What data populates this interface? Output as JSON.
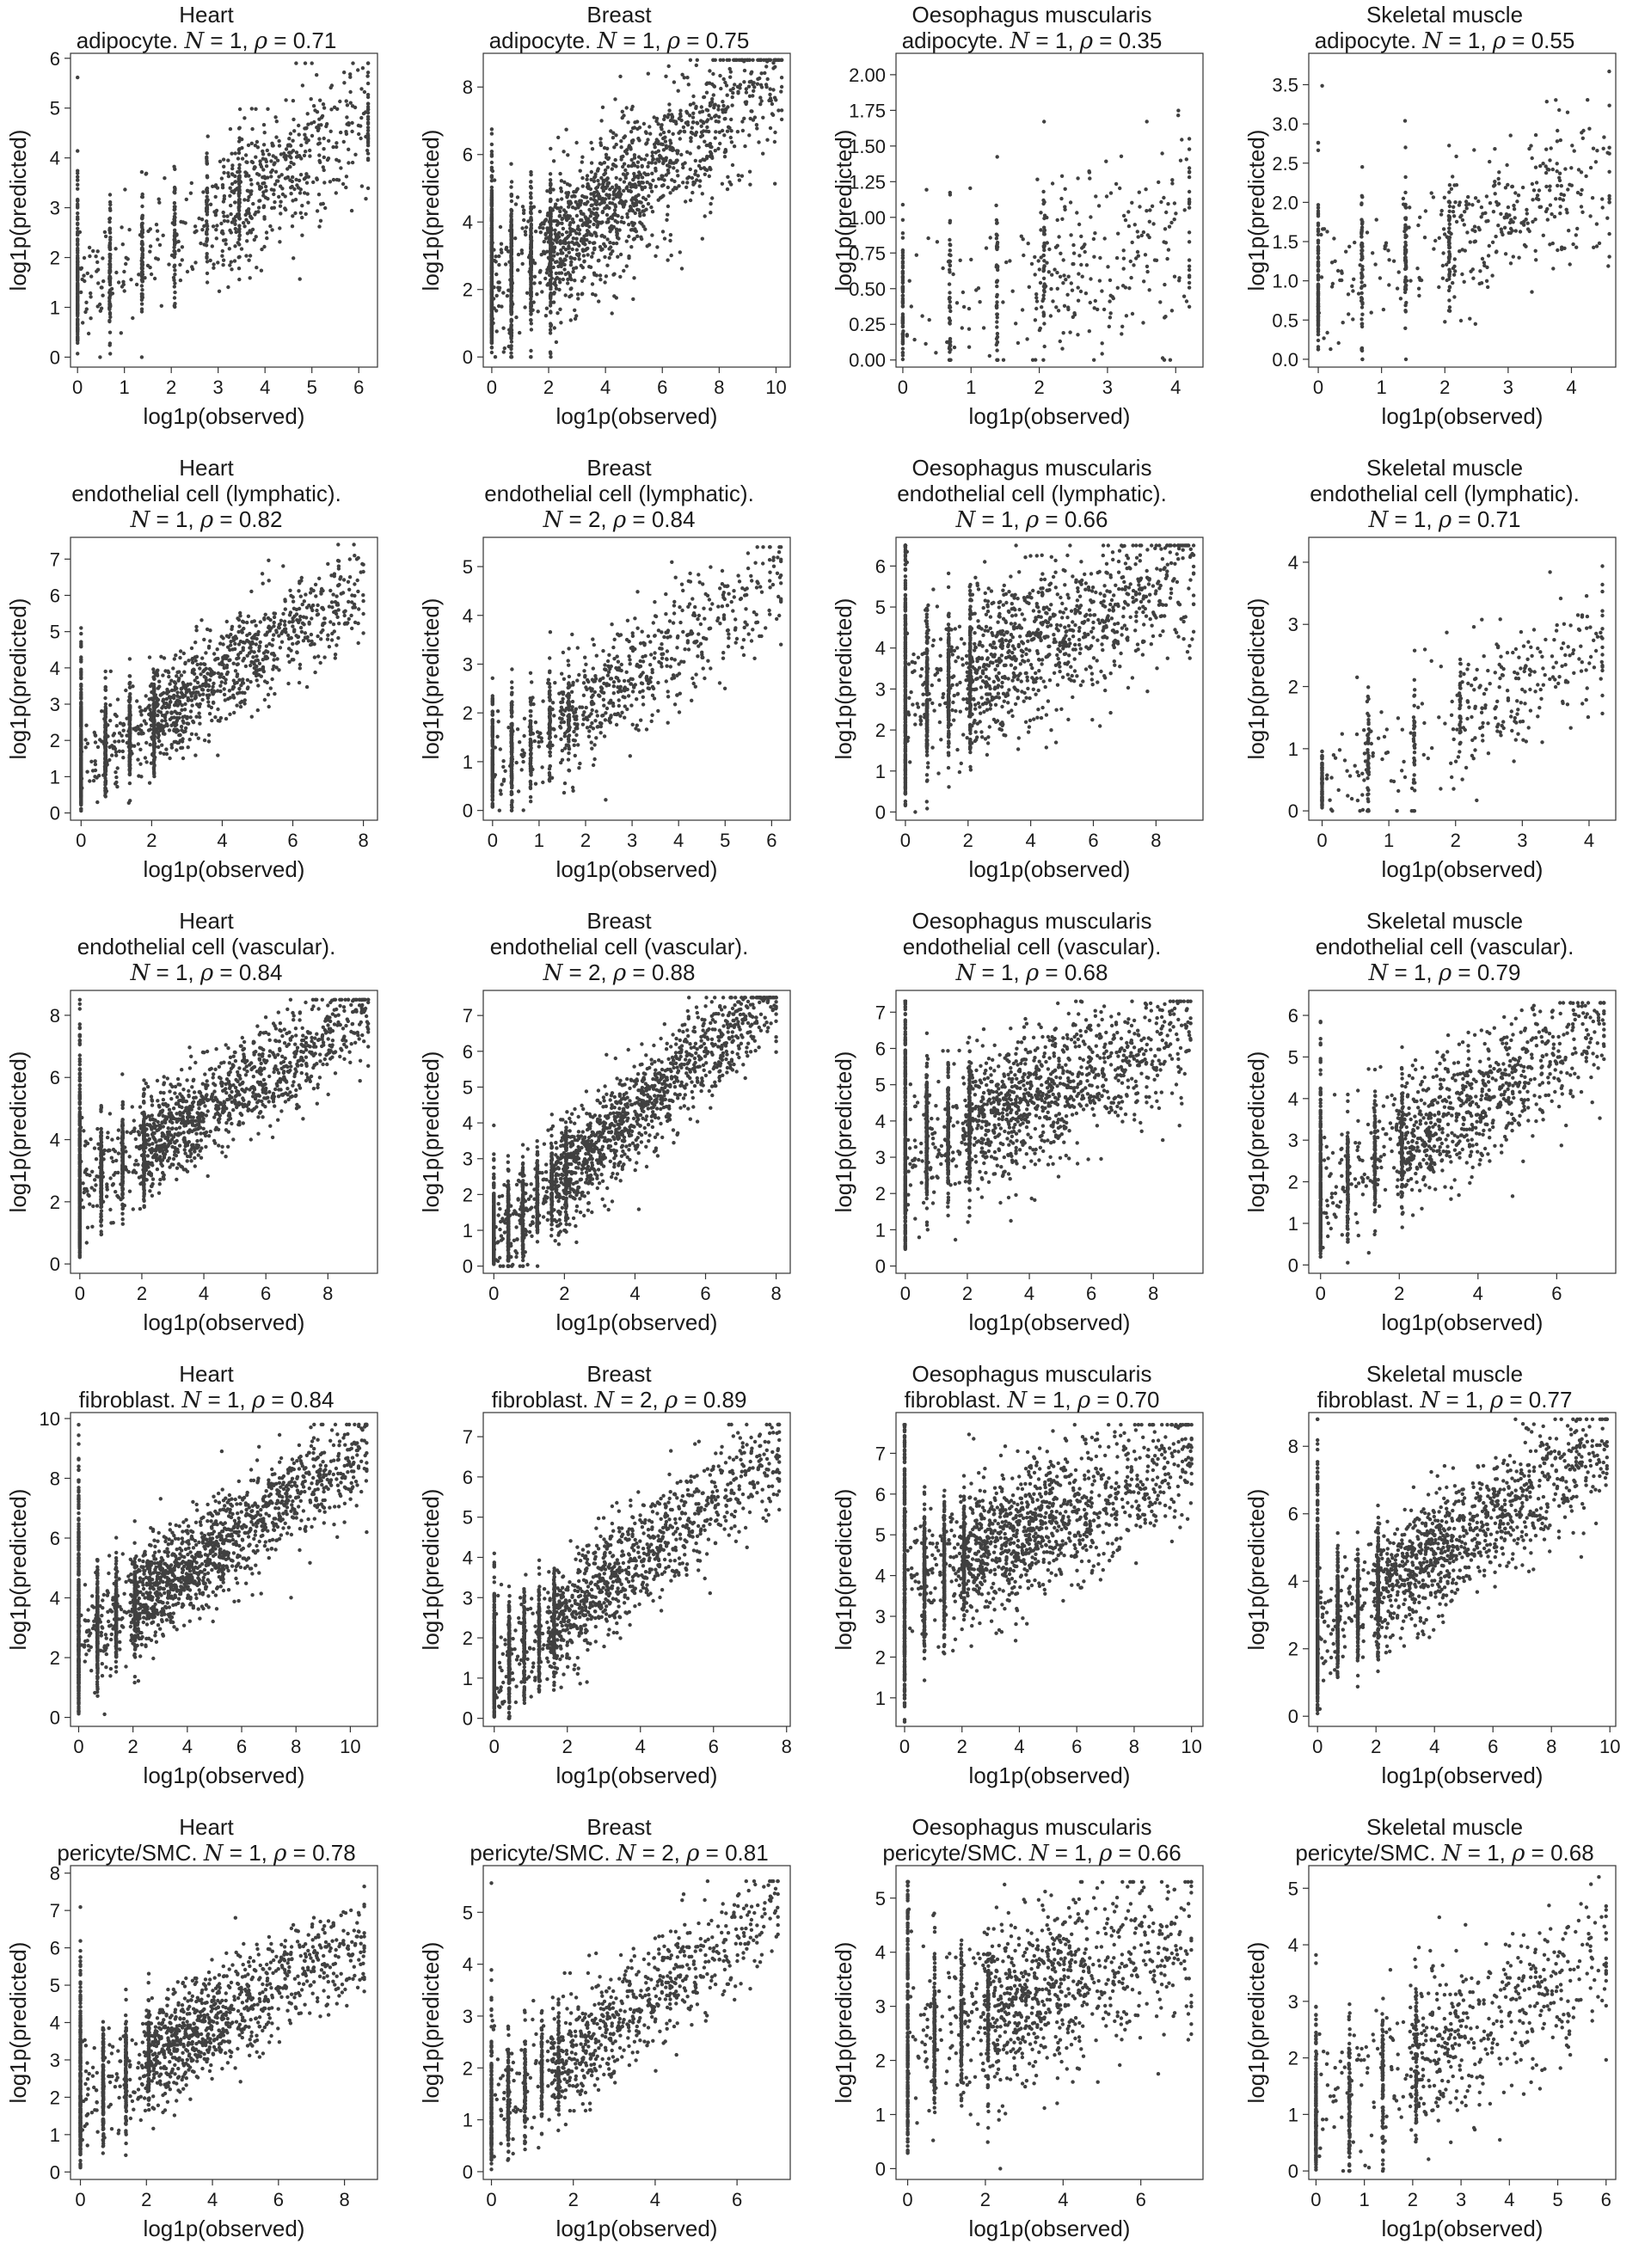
{
  "chart_data": [
    {
      "type": "scatter",
      "tissue": "Heart",
      "cell": "adipocyte.",
      "stat_n": "1",
      "stat_rho": "0.71",
      "xlabel": "log1p(observed)",
      "ylabel": "log1p(predicted)",
      "xticks": [
        0,
        1,
        2,
        3,
        4,
        5,
        6
      ],
      "yticks": [
        0,
        1,
        2,
        3,
        4,
        5,
        6
      ],
      "xlim": [
        -0.15,
        6.4
      ],
      "ylim": [
        -0.2,
        6.1
      ],
      "rho": 0.71,
      "count": 1100,
      "xmaxd": 6.2,
      "ymaxd": 5.9,
      "slope": 0.55,
      "intercept": 1.3,
      "sd": 0.7,
      "spacing": 0.69,
      "cols": 6
    },
    {
      "type": "scatter",
      "tissue": "Breast",
      "cell": "adipocyte.",
      "stat_n": "1",
      "stat_rho": "0.75",
      "xlabel": "log1p(observed)",
      "ylabel": "log1p(predicted)",
      "xticks": [
        0,
        2,
        4,
        6,
        8,
        10
      ],
      "yticks": [
        0,
        2,
        4,
        6,
        8
      ],
      "xlim": [
        -0.3,
        10.5
      ],
      "ylim": [
        -0.3,
        9.0
      ],
      "rho": 0.75,
      "count": 2200,
      "xmaxd": 10.2,
      "ymaxd": 8.8,
      "slope": 0.62,
      "intercept": 2.0,
      "sd": 1.1,
      "spacing": 0.69,
      "cols": 4
    },
    {
      "type": "scatter",
      "tissue": "Oesophagus muscularis",
      "cell": "adipocyte.",
      "stat_n": "1",
      "stat_rho": "0.35",
      "xlabel": "log1p(observed)",
      "ylabel": "log1p(predicted)",
      "xticks": [
        0,
        1,
        2,
        3,
        4
      ],
      "yticks": [
        0,
        0.25,
        0.5,
        0.75,
        1.0,
        1.25,
        1.5,
        1.75,
        2.0
      ],
      "ytickfmt": 2,
      "xlim": [
        -0.1,
        4.4
      ],
      "ylim": [
        -0.05,
        2.15
      ],
      "rho": 0.35,
      "count": 500,
      "xmaxd": 4.2,
      "ymaxd": 2.05,
      "slope": 0.12,
      "intercept": 0.35,
      "sd": 0.35,
      "spacing": 0.69,
      "cols": 4
    },
    {
      "type": "scatter",
      "tissue": "Skeletal muscle",
      "cell": "adipocyte.",
      "stat_n": "1",
      "stat_rho": "0.55",
      "xlabel": "log1p(observed)",
      "ylabel": "log1p(predicted)",
      "xticks": [
        0,
        1,
        2,
        3,
        4
      ],
      "yticks": [
        0,
        0.5,
        1.0,
        1.5,
        2.0,
        2.5,
        3.0,
        3.5
      ],
      "ytickfmt": 1,
      "xlim": [
        -0.15,
        4.7
      ],
      "ylim": [
        -0.1,
        3.9
      ],
      "rho": 0.55,
      "count": 650,
      "xmaxd": 4.6,
      "ymaxd": 3.8,
      "slope": 0.3,
      "intercept": 0.9,
      "sd": 0.5,
      "spacing": 0.69,
      "cols": 4
    },
    {
      "type": "scatter",
      "tissue": "Heart",
      "cell": "endothelial cell (lymphatic).",
      "stat_n": "1",
      "stat_rho": "0.82",
      "xlabel": "log1p(observed)",
      "ylabel": "log1p(predicted)",
      "xticks": [
        0,
        2,
        4,
        6,
        8
      ],
      "yticks": [
        0,
        1,
        2,
        3,
        4,
        5,
        6,
        7
      ],
      "xlim": [
        -0.3,
        8.4
      ],
      "ylim": [
        -0.2,
        7.6
      ],
      "rho": 0.82,
      "count": 1700,
      "xmaxd": 8.0,
      "ymaxd": 7.4,
      "slope": 0.6,
      "intercept": 1.4,
      "sd": 0.7,
      "spacing": 0.69,
      "cols": 4
    },
    {
      "type": "scatter",
      "tissue": "Breast",
      "cell": "endothelial cell (lymphatic).",
      "stat_n": "2",
      "stat_rho": "0.84",
      "xlabel": "log1p(observed)",
      "ylabel": "log1p(predicted)",
      "xticks": [
        0,
        1,
        2,
        3,
        4,
        5,
        6
      ],
      "yticks": [
        0,
        1,
        2,
        3,
        4,
        5
      ],
      "xlim": [
        -0.2,
        6.4
      ],
      "ylim": [
        -0.2,
        5.6
      ],
      "rho": 0.84,
      "count": 1100,
      "xmaxd": 6.2,
      "ymaxd": 5.4,
      "slope": 0.62,
      "intercept": 0.9,
      "sd": 0.6,
      "spacing": 0.41,
      "cols": 5
    },
    {
      "type": "scatter",
      "tissue": "Oesophagus muscularis",
      "cell": "endothelial cell (lymphatic).",
      "stat_n": "1",
      "stat_rho": "0.66",
      "xlabel": "log1p(observed)",
      "ylabel": "log1p(predicted)",
      "xticks": [
        0,
        2,
        4,
        6,
        8
      ],
      "yticks": [
        0,
        1,
        2,
        3,
        4,
        5,
        6
      ],
      "xlim": [
        -0.3,
        9.5
      ],
      "ylim": [
        -0.2,
        6.7
      ],
      "rho": 0.66,
      "count": 1800,
      "xmaxd": 9.2,
      "ymaxd": 6.5,
      "slope": 0.35,
      "intercept": 2.6,
      "sd": 0.9,
      "spacing": 0.69,
      "cols": 4
    },
    {
      "type": "scatter",
      "tissue": "Skeletal muscle",
      "cell": "endothelial cell (lymphatic).",
      "stat_n": "1",
      "stat_rho": "0.71",
      "xlabel": "log1p(observed)",
      "ylabel": "log1p(predicted)",
      "xticks": [
        0,
        1,
        2,
        3,
        4
      ],
      "yticks": [
        0,
        1,
        2,
        3,
        4
      ],
      "xlim": [
        -0.2,
        4.4
      ],
      "ylim": [
        -0.15,
        4.4
      ],
      "rho": 0.71,
      "count": 500,
      "xmaxd": 4.2,
      "ymaxd": 4.2,
      "slope": 0.55,
      "intercept": 0.4,
      "sd": 0.55,
      "spacing": 0.69,
      "cols": 4
    },
    {
      "type": "scatter",
      "tissue": "Heart",
      "cell": "endothelial cell (vascular).",
      "stat_n": "1",
      "stat_rho": "0.84",
      "xlabel": "log1p(observed)",
      "ylabel": "log1p(predicted)",
      "xticks": [
        0,
        2,
        4,
        6,
        8
      ],
      "yticks": [
        0,
        2,
        4,
        6,
        8
      ],
      "xlim": [
        -0.3,
        9.6
      ],
      "ylim": [
        -0.3,
        8.8
      ],
      "rho": 0.84,
      "count": 2000,
      "xmaxd": 9.3,
      "ymaxd": 8.5,
      "slope": 0.6,
      "intercept": 2.5,
      "sd": 0.8,
      "spacing": 0.69,
      "cols": 4
    },
    {
      "type": "scatter",
      "tissue": "Breast",
      "cell": "endothelial cell (vascular).",
      "stat_n": "2",
      "stat_rho": "0.88",
      "xlabel": "log1p(observed)",
      "ylabel": "log1p(predicted)",
      "xticks": [
        0,
        2,
        4,
        6,
        8
      ],
      "yticks": [
        0,
        1,
        2,
        3,
        4,
        5,
        6,
        7
      ],
      "xlim": [
        -0.3,
        8.4
      ],
      "ylim": [
        -0.2,
        7.7
      ],
      "rho": 0.88,
      "count": 2200,
      "xmaxd": 8.0,
      "ymaxd": 7.5,
      "slope": 0.85,
      "intercept": 0.9,
      "sd": 0.7,
      "spacing": 0.41,
      "cols": 6
    },
    {
      "type": "scatter",
      "tissue": "Oesophagus muscularis",
      "cell": "endothelial cell (vascular).",
      "stat_n": "1",
      "stat_rho": "0.68",
      "xlabel": "log1p(observed)",
      "ylabel": "log1p(predicted)",
      "xticks": [
        0,
        2,
        4,
        6,
        8
      ],
      "yticks": [
        0,
        1,
        2,
        3,
        4,
        5,
        6,
        7
      ],
      "xlim": [
        -0.3,
        9.6
      ],
      "ylim": [
        -0.2,
        7.6
      ],
      "rho": 0.68,
      "count": 2000,
      "xmaxd": 9.2,
      "ymaxd": 7.3,
      "slope": 0.35,
      "intercept": 3.2,
      "sd": 0.9,
      "spacing": 0.69,
      "cols": 4
    },
    {
      "type": "scatter",
      "tissue": "Skeletal muscle",
      "cell": "endothelial cell (vascular).",
      "stat_n": "1",
      "stat_rho": "0.79",
      "xlabel": "log1p(observed)",
      "ylabel": "log1p(predicted)",
      "xticks": [
        0,
        2,
        4,
        6
      ],
      "yticks": [
        0,
        1,
        2,
        3,
        4,
        5,
        6
      ],
      "xlim": [
        -0.3,
        7.5
      ],
      "ylim": [
        -0.2,
        6.6
      ],
      "rho": 0.79,
      "count": 1500,
      "xmaxd": 7.2,
      "ymaxd": 6.3,
      "slope": 0.55,
      "intercept": 1.7,
      "sd": 0.75,
      "spacing": 0.69,
      "cols": 4
    },
    {
      "type": "scatter",
      "tissue": "Heart",
      "cell": "fibroblast.",
      "stat_n": "1",
      "stat_rho": "0.84",
      "xlabel": "log1p(observed)",
      "ylabel": "log1p(predicted)",
      "xticks": [
        0,
        2,
        4,
        6,
        8,
        10
      ],
      "yticks": [
        0,
        2,
        4,
        6,
        8,
        10
      ],
      "xlim": [
        -0.3,
        11.0
      ],
      "ylim": [
        -0.3,
        10.2
      ],
      "rho": 0.84,
      "count": 2400,
      "xmaxd": 10.6,
      "ymaxd": 9.8,
      "slope": 0.6,
      "intercept": 2.6,
      "sd": 0.85,
      "spacing": 0.69,
      "cols": 4
    },
    {
      "type": "scatter",
      "tissue": "Breast",
      "cell": "fibroblast.",
      "stat_n": "2",
      "stat_rho": "0.89",
      "xlabel": "log1p(observed)",
      "ylabel": "log1p(predicted)",
      "xticks": [
        0,
        2,
        4,
        6,
        8
      ],
      "yticks": [
        0,
        1,
        2,
        3,
        4,
        5,
        6,
        7
      ],
      "xlim": [
        -0.3,
        8.1
      ],
      "ylim": [
        -0.2,
        7.6
      ],
      "rho": 0.89,
      "count": 1900,
      "xmaxd": 7.8,
      "ymaxd": 7.3,
      "slope": 0.7,
      "intercept": 1.2,
      "sd": 0.7,
      "spacing": 0.41,
      "cols": 5
    },
    {
      "type": "scatter",
      "tissue": "Oesophagus muscularis",
      "cell": "fibroblast.",
      "stat_n": "1",
      "stat_rho": "0.70",
      "xlabel": "log1p(observed)",
      "ylabel": "log1p(predicted)",
      "xticks": [
        0,
        2,
        4,
        6,
        8,
        10
      ],
      "yticks": [
        1,
        2,
        3,
        4,
        5,
        6,
        7
      ],
      "xlim": [
        -0.3,
        10.4
      ],
      "ylim": [
        0.3,
        8.0
      ],
      "rho": 0.7,
      "count": 2200,
      "xmaxd": 10.0,
      "ymaxd": 7.7,
      "slope": 0.3,
      "intercept": 3.8,
      "sd": 0.8,
      "spacing": 0.69,
      "cols": 4
    },
    {
      "type": "scatter",
      "tissue": "Skeletal muscle",
      "cell": "fibroblast.",
      "stat_n": "1",
      "stat_rho": "0.77",
      "xlabel": "log1p(observed)",
      "ylabel": "log1p(predicted)",
      "xticks": [
        0,
        2,
        4,
        6,
        8,
        10
      ],
      "yticks": [
        0,
        2,
        4,
        6,
        8
      ],
      "xlim": [
        -0.3,
        10.2
      ],
      "ylim": [
        -0.3,
        9.0
      ],
      "rho": 0.77,
      "count": 2000,
      "xmaxd": 9.9,
      "ymaxd": 8.8,
      "slope": 0.55,
      "intercept": 2.6,
      "sd": 0.9,
      "spacing": 0.69,
      "cols": 4
    },
    {
      "type": "scatter",
      "tissue": "Heart",
      "cell": "pericyte/SMC.",
      "stat_n": "1",
      "stat_rho": "0.78",
      "xlabel": "log1p(observed)",
      "ylabel": "log1p(predicted)",
      "xticks": [
        0,
        2,
        4,
        6,
        8
      ],
      "yticks": [
        0,
        1,
        2,
        3,
        4,
        5,
        6,
        7,
        8
      ],
      "xlim": [
        -0.3,
        9.0
      ],
      "ylim": [
        -0.2,
        8.2
      ],
      "rho": 0.78,
      "count": 1800,
      "xmaxd": 8.6,
      "ymaxd": 7.7,
      "slope": 0.5,
      "intercept": 2.0,
      "sd": 0.7,
      "spacing": 0.69,
      "cols": 4
    },
    {
      "type": "scatter",
      "tissue": "Breast",
      "cell": "pericyte/SMC.",
      "stat_n": "2",
      "stat_rho": "0.81",
      "xlabel": "log1p(observed)",
      "ylabel": "log1p(predicted)",
      "xticks": [
        0,
        2,
        4,
        6
      ],
      "yticks": [
        0,
        1,
        2,
        3,
        4,
        5
      ],
      "xlim": [
        -0.2,
        7.3
      ],
      "ylim": [
        -0.15,
        5.9
      ],
      "rho": 0.81,
      "count": 1300,
      "xmaxd": 7.0,
      "ymaxd": 5.6,
      "slope": 0.55,
      "intercept": 1.2,
      "sd": 0.55,
      "spacing": 0.41,
      "cols": 5
    },
    {
      "type": "scatter",
      "tissue": "Oesophagus muscularis",
      "cell": "pericyte/SMC.",
      "stat_n": "1",
      "stat_rho": "0.66",
      "xlabel": "log1p(observed)",
      "ylabel": "log1p(predicted)",
      "xticks": [
        0,
        2,
        4,
        6
      ],
      "yticks": [
        0,
        1,
        2,
        3,
        4,
        5
      ],
      "xlim": [
        -0.3,
        7.6
      ],
      "ylim": [
        -0.2,
        5.6
      ],
      "rho": 0.66,
      "count": 1500,
      "xmaxd": 7.3,
      "ymaxd": 5.3,
      "slope": 0.28,
      "intercept": 2.3,
      "sd": 0.75,
      "spacing": 0.69,
      "cols": 4
    },
    {
      "type": "scatter",
      "tissue": "Skeletal muscle",
      "cell": "pericyte/SMC.",
      "stat_n": "1",
      "stat_rho": "0.68",
      "xlabel": "log1p(observed)",
      "ylabel": "log1p(predicted)",
      "xticks": [
        0,
        1,
        2,
        3,
        4,
        5,
        6
      ],
      "yticks": [
        0,
        1,
        2,
        3,
        4,
        5
      ],
      "xlim": [
        -0.15,
        6.2
      ],
      "ylim": [
        -0.15,
        5.4
      ],
      "rho": 0.68,
      "count": 1000,
      "xmaxd": 6.0,
      "ymaxd": 5.2,
      "slope": 0.45,
      "intercept": 1.0,
      "sd": 0.7,
      "spacing": 0.69,
      "cols": 4
    }
  ]
}
